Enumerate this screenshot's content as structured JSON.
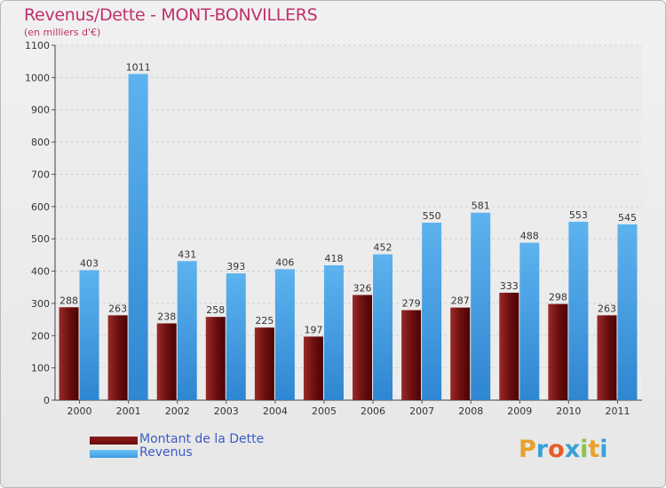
{
  "title": "Revenus/Dette - MONT-BONVILLERS",
  "subtitle": "(en milliers d'€)",
  "colors": {
    "dette": "#6b0a0a",
    "revenus": "#3f9be2",
    "title": "#c0306b",
    "legend_text": "#3b5cc4"
  },
  "legend": [
    {
      "label": "Montant de la Dette",
      "color": "#6b0a0a"
    },
    {
      "label": "Revenus",
      "color": "#3f9be2"
    }
  ],
  "logo": {
    "text": "Proxiti",
    "letters": [
      "P",
      "r",
      "o",
      "x",
      "i",
      "t",
      "i"
    ],
    "colors": [
      "#e8a12d",
      "#3aa0d8",
      "#e85c2a",
      "#3aa0d8",
      "#8bc34a",
      "#e8a12d",
      "#3aa0d8"
    ]
  },
  "chart_data": {
    "type": "bar",
    "title": "Revenus/Dette - MONT-BONVILLERS",
    "ylabel": "(en milliers d'€)",
    "ylim": [
      0,
      1100
    ],
    "yticks": [
      0,
      100,
      200,
      300,
      400,
      500,
      600,
      700,
      800,
      900,
      1000,
      1100
    ],
    "grid": true,
    "categories": [
      "2000",
      "2001",
      "2002",
      "2003",
      "2004",
      "2005",
      "2006",
      "2007",
      "2008",
      "2009",
      "2010",
      "2011"
    ],
    "series": [
      {
        "name": "Montant de la Dette",
        "values": [
          288,
          263,
          238,
          258,
          225,
          197,
          326,
          279,
          287,
          333,
          298,
          263
        ]
      },
      {
        "name": "Revenus",
        "values": [
          403,
          1011,
          431,
          393,
          406,
          418,
          452,
          550,
          581,
          488,
          553,
          545
        ]
      }
    ]
  }
}
